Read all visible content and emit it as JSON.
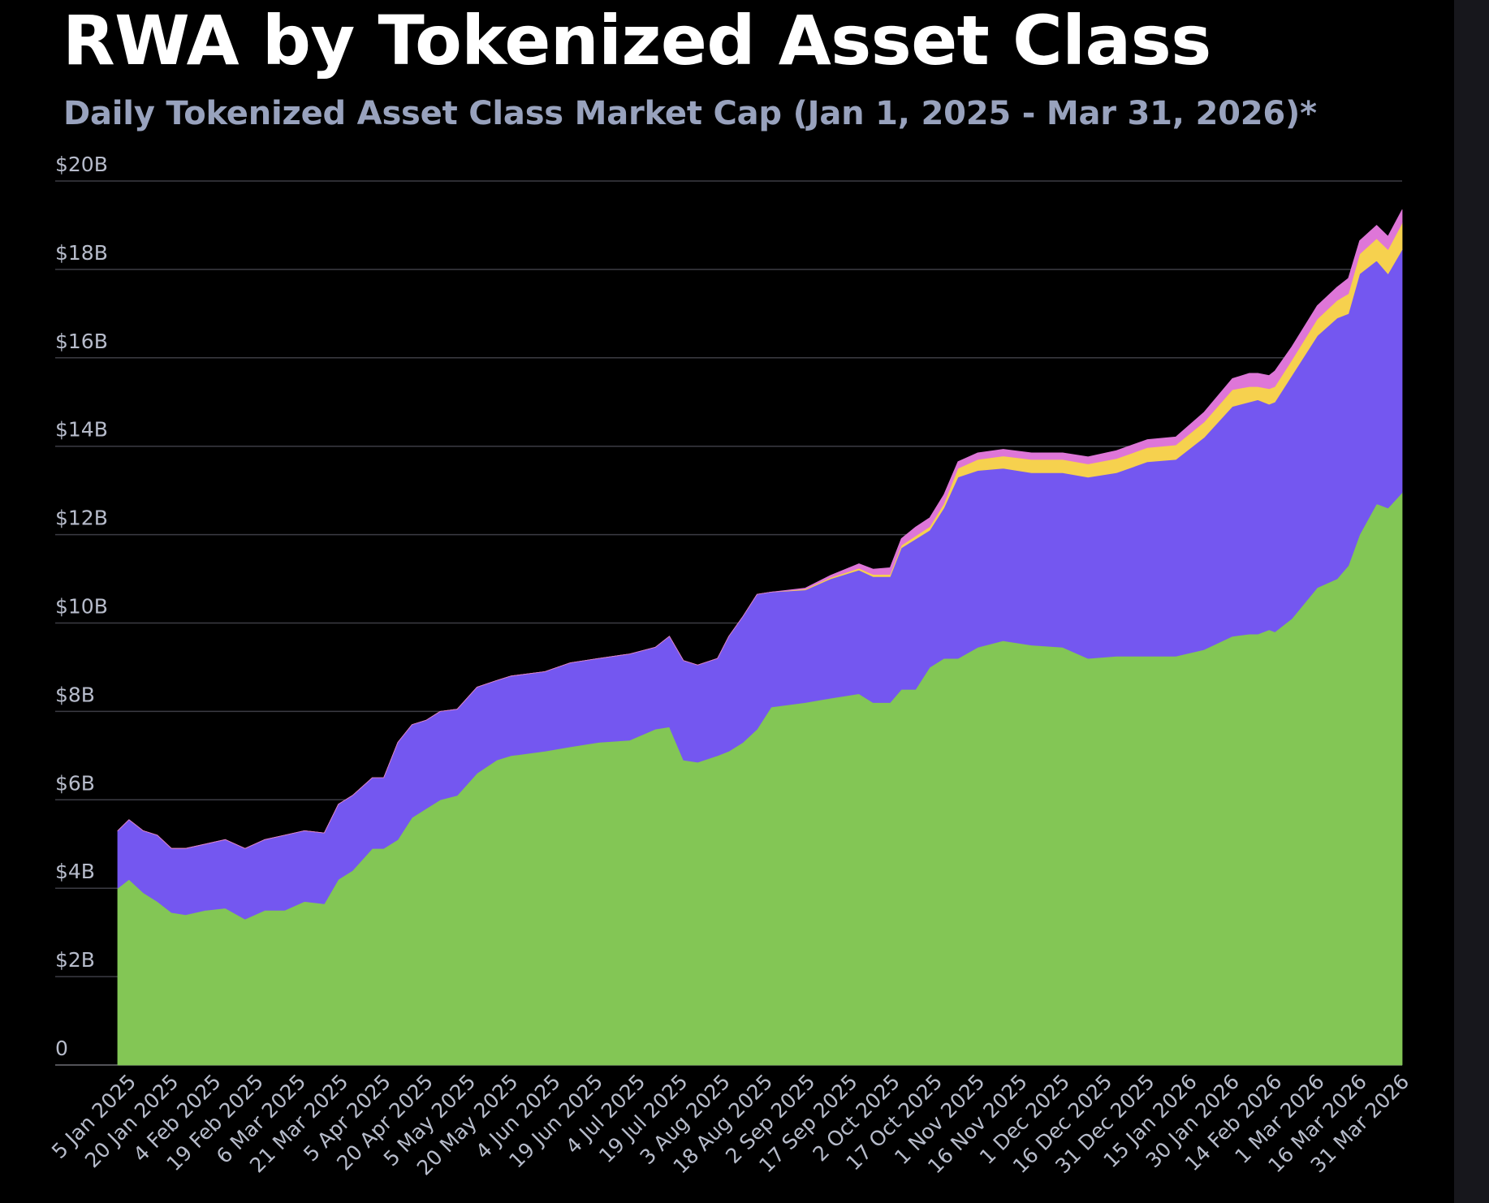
{
  "header": {
    "title": "RWA by Tokenized Asset Class",
    "subtitle": "Daily Tokenized Asset Class Market Cap (Jan 1, 2025 - Mar 31, 2026)*"
  },
  "chart_data": {
    "type": "area",
    "stacked": true,
    "title": "RWA by Tokenized Asset Class",
    "subtitle": "Daily Tokenized Asset Class Market Cap (Jan 1, 2025 - Mar 31, 2026)*",
    "xlabel": "",
    "ylabel": "",
    "ylim": [
      0,
      20
    ],
    "x_range": [
      "2025-01-01",
      "2026-03-31"
    ],
    "y_ticks": [
      "0",
      "$2B",
      "$4B",
      "$6B",
      "$8B",
      "$10B",
      "$12B",
      "$14B",
      "$16B",
      "$18B",
      "$20B"
    ],
    "x_ticks": [
      "5 Jan 2025",
      "20 Jan 2025",
      "4 Feb 2025",
      "19 Feb 2025",
      "6 Mar 2025",
      "21 Mar 2025",
      "5 Apr 2025",
      "20 Apr 2025",
      "5 May 2025",
      "20 May 2025",
      "4 Jun 2025",
      "19 Jun 2025",
      "4 Jul 2025",
      "19 Jul 2025",
      "3 Aug 2025",
      "18 Aug 2025",
      "2 Sep 2025",
      "17 Sep 2025",
      "2 Oct 2025",
      "17 Oct 2025",
      "1 Nov 2025",
      "16 Nov 2025",
      "1 Dec 2025",
      "16 Dec 2025",
      "31 Dec 2025",
      "15 Jan 2026",
      "30 Jan 2026",
      "14 Feb 2026",
      "1 Mar 2026",
      "16 Mar 2026",
      "31 Mar 2026"
    ],
    "grid": true,
    "legend": "none",
    "x": [
      "2025-01-01",
      "2025-01-05",
      "2025-01-10",
      "2025-01-15",
      "2025-01-20",
      "2025-01-25",
      "2025-02-01",
      "2025-02-08",
      "2025-02-15",
      "2025-02-22",
      "2025-03-01",
      "2025-03-08",
      "2025-03-15",
      "2025-03-20",
      "2025-03-25",
      "2025-04-01",
      "2025-04-05",
      "2025-04-10",
      "2025-04-15",
      "2025-04-20",
      "2025-04-25",
      "2025-05-01",
      "2025-05-08",
      "2025-05-15",
      "2025-05-20",
      "2025-06-01",
      "2025-06-10",
      "2025-06-20",
      "2025-07-01",
      "2025-07-10",
      "2025-07-15",
      "2025-07-20",
      "2025-07-25",
      "2025-08-01",
      "2025-08-05",
      "2025-08-10",
      "2025-08-15",
      "2025-08-20",
      "2025-09-01",
      "2025-09-10",
      "2025-09-20",
      "2025-09-25",
      "2025-10-01",
      "2025-10-05",
      "2025-10-10",
      "2025-10-15",
      "2025-10-20",
      "2025-10-25",
      "2025-11-01",
      "2025-11-10",
      "2025-11-20",
      "2025-12-01",
      "2025-12-10",
      "2025-12-20",
      "2025-12-31",
      "2026-01-10",
      "2026-01-20",
      "2026-01-30",
      "2026-02-05",
      "2026-02-08",
      "2026-02-12",
      "2026-02-14",
      "2026-02-20",
      "2026-03-01",
      "2026-03-08",
      "2026-03-12",
      "2026-03-16",
      "2026-03-22",
      "2026-03-26",
      "2026-03-31"
    ],
    "series": [
      {
        "color": "#83c655",
        "values": [
          4.0,
          4.2,
          3.9,
          3.7,
          3.45,
          3.4,
          3.5,
          3.55,
          3.3,
          3.5,
          3.5,
          3.7,
          3.65,
          4.2,
          4.4,
          4.9,
          4.9,
          5.1,
          5.6,
          5.8,
          6.0,
          6.1,
          6.6,
          6.9,
          7.0,
          7.1,
          7.2,
          7.3,
          7.35,
          7.6,
          7.65,
          6.9,
          6.85,
          7.0,
          7.1,
          7.3,
          7.6,
          8.1,
          8.2,
          8.3,
          8.4,
          8.2,
          8.2,
          8.5,
          8.5,
          9.0,
          9.2,
          9.2,
          9.45,
          9.6,
          9.5,
          9.45,
          9.2,
          9.25,
          9.25,
          9.25,
          9.4,
          9.7,
          9.75,
          9.75,
          9.85,
          9.8,
          10.1,
          10.8,
          11.0,
          11.3,
          12.0,
          12.7,
          12.6,
          12.95
        ]
      },
      {
        "color": "#7457f0",
        "values": [
          1.3,
          1.35,
          1.4,
          1.5,
          1.45,
          1.5,
          1.5,
          1.55,
          1.6,
          1.6,
          1.7,
          1.6,
          1.6,
          1.7,
          1.7,
          1.6,
          1.6,
          2.2,
          2.1,
          2.0,
          2.0,
          1.95,
          1.95,
          1.8,
          1.8,
          1.8,
          1.9,
          1.9,
          1.95,
          1.85,
          2.05,
          2.25,
          2.2,
          2.2,
          2.6,
          2.85,
          3.05,
          2.6,
          2.55,
          2.7,
          2.8,
          2.85,
          2.85,
          3.2,
          3.4,
          3.1,
          3.4,
          4.1,
          4.0,
          3.9,
          3.9,
          3.95,
          4.1,
          4.15,
          4.4,
          4.45,
          4.8,
          5.2,
          5.25,
          5.3,
          5.1,
          5.2,
          5.5,
          5.7,
          5.9,
          5.7,
          5.9,
          5.5,
          5.3,
          5.5
        ]
      },
      {
        "color": "#f6d14e",
        "values": [
          0,
          0,
          0,
          0,
          0,
          0,
          0,
          0,
          0,
          0,
          0,
          0,
          0,
          0,
          0,
          0,
          0,
          0,
          0,
          0,
          0,
          0,
          0,
          0,
          0,
          0,
          0,
          0,
          0,
          0,
          0,
          0,
          0,
          0,
          0,
          0,
          0,
          0,
          0.02,
          0.03,
          0.04,
          0.05,
          0.05,
          0.06,
          0.07,
          0.08,
          0.1,
          0.2,
          0.25,
          0.28,
          0.3,
          0.3,
          0.3,
          0.32,
          0.32,
          0.33,
          0.35,
          0.38,
          0.35,
          0.3,
          0.35,
          0.35,
          0.35,
          0.38,
          0.4,
          0.45,
          0.45,
          0.5,
          0.55,
          0.6
        ]
      },
      {
        "color": "#de76d8",
        "values": [
          0,
          0,
          0,
          0,
          0,
          0,
          0,
          0,
          0,
          0,
          0,
          0,
          0,
          0,
          0,
          0,
          0,
          0,
          0,
          0,
          0,
          0,
          0,
          0,
          0,
          0,
          0,
          0,
          0,
          0,
          0,
          0,
          0,
          0,
          0,
          0,
          0,
          0,
          0.02,
          0.05,
          0.1,
          0.12,
          0.15,
          0.15,
          0.2,
          0.2,
          0.2,
          0.15,
          0.15,
          0.15,
          0.15,
          0.15,
          0.16,
          0.18,
          0.18,
          0.18,
          0.22,
          0.25,
          0.3,
          0.3,
          0.3,
          0.35,
          0.3,
          0.3,
          0.3,
          0.35,
          0.3,
          0.3,
          0.3,
          0.3
        ]
      }
    ]
  }
}
